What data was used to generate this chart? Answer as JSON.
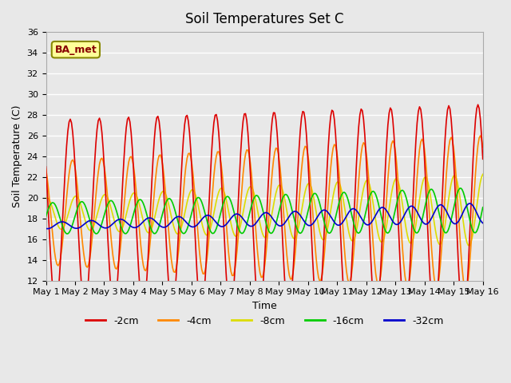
{
  "title": "Soil Temperatures Set C",
  "xlabel": "Time",
  "ylabel": "Soil Temperature (C)",
  "ylim": [
    12,
    36
  ],
  "yticks": [
    12,
    14,
    16,
    18,
    20,
    22,
    24,
    26,
    28,
    30,
    32,
    34,
    36
  ],
  "xlim": [
    0,
    15
  ],
  "xtick_labels": [
    "May 1",
    "May 2",
    "May 3",
    "May 4",
    "May 5",
    "May 6",
    "May 7",
    "May 8",
    "May 9",
    "May 10",
    "May 11",
    "May 12",
    "May 13",
    "May 14",
    "May 15",
    "May 16"
  ],
  "colors": {
    "-2cm": "#dd0000",
    "-4cm": "#ff8800",
    "-8cm": "#dddd00",
    "-16cm": "#00cc00",
    "-32cm": "#0000cc"
  },
  "legend_labels": [
    "-2cm",
    "-4cm",
    "-8cm",
    "-16cm",
    "-32cm"
  ],
  "background_color": "#e8e8e8",
  "plot_bg_color": "#e8e8e8",
  "grid_color": "#ffffff",
  "label_box_color": "#ffff99",
  "label_box_edge": "#888800",
  "label_text": "BA_met",
  "label_text_color": "#880000",
  "n_points": 360,
  "days": 15,
  "base_temp_2cm": 18.5,
  "amp_2cm_start": 9.0,
  "amp_2cm_end": 10.5,
  "base_temp_4cm": 18.5,
  "amp_4cm_start": 5.0,
  "amp_4cm_end": 7.5,
  "base_temp_8cm": 18.5,
  "amp_8cm_start": 1.5,
  "amp_8cm_end": 3.5,
  "base_temp_16cm": 18.0,
  "amp_16cm_start": 1.5,
  "amp_16cm_end": 2.2,
  "base_temp_32cm": 17.3,
  "amp_32cm_start": 0.3,
  "amp_32cm_end": 1.0,
  "phase_shift_4cm": 0.5,
  "phase_shift_8cm": 1.2,
  "phase_shift_16cm": 2.5,
  "phase_shift_32cm": 4.5,
  "linewidth": 1.2
}
